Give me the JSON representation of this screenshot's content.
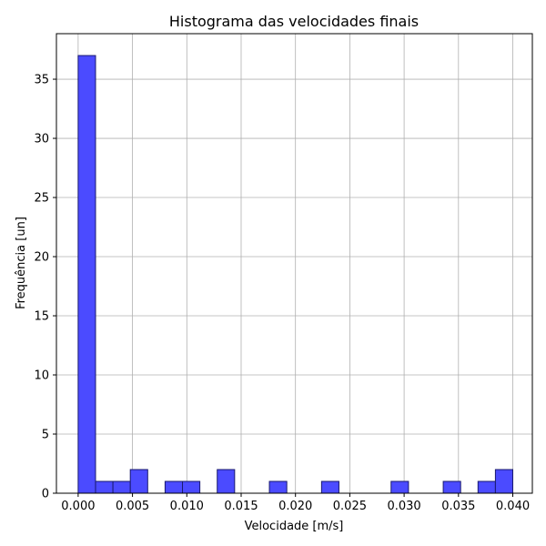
{
  "chart_data": {
    "type": "bar",
    "title": "Histograma das velocidades finais",
    "xlabel": "Velocidade [m/s]",
    "ylabel": "Frequência [un]",
    "xlim": [
      -0.002,
      0.0418
    ],
    "ylim": [
      0,
      38.85
    ],
    "xticks": [
      "0.000",
      "0.005",
      "0.010",
      "0.015",
      "0.020",
      "0.025",
      "0.030",
      "0.035",
      "0.040"
    ],
    "yticks": [
      "0",
      "5",
      "10",
      "15",
      "20",
      "25",
      "30",
      "35"
    ],
    "grid": true,
    "bin_start": 0.0,
    "bin_width": 0.0016,
    "values": [
      37,
      1,
      1,
      2,
      0,
      1,
      1,
      0,
      2,
      0,
      0,
      1,
      0,
      0,
      1,
      0,
      0,
      0,
      1,
      0,
      0,
      1,
      0,
      1,
      2
    ],
    "colors": {
      "fill": "#4b4bff",
      "edge": "#1a1a6e"
    }
  }
}
